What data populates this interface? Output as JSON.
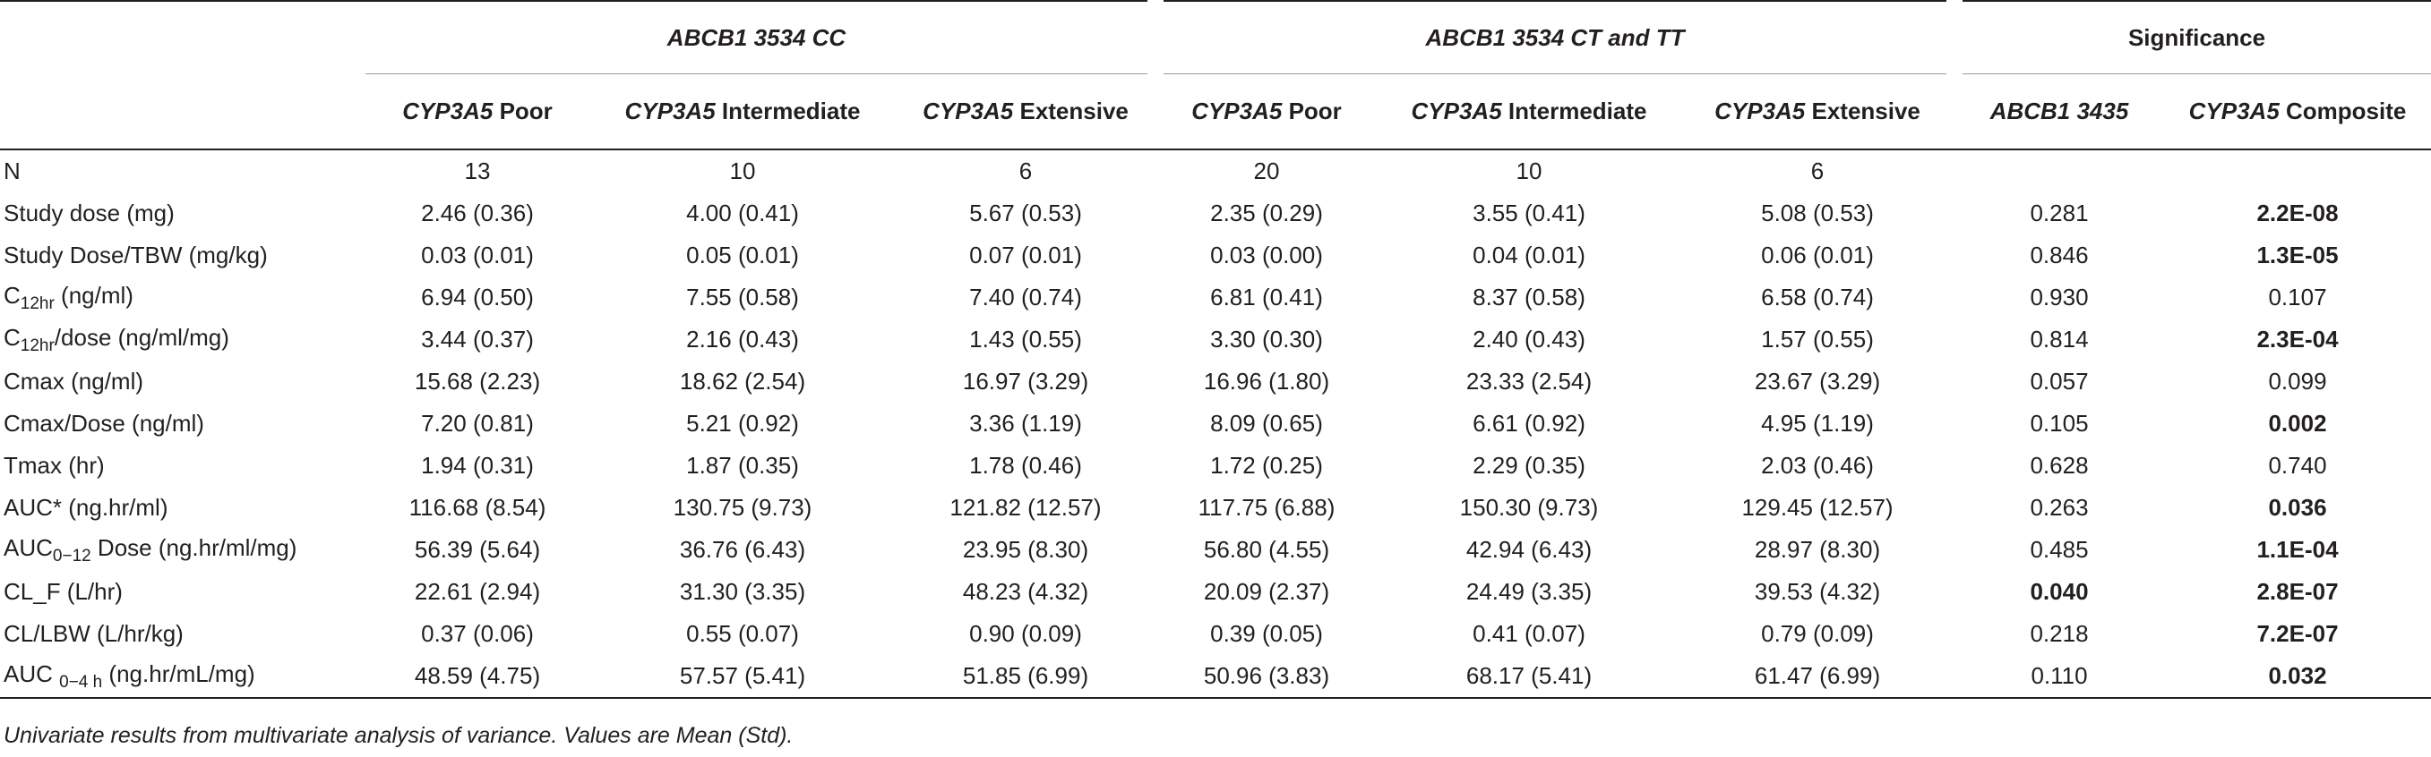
{
  "header": {
    "groups": [
      "ABCB1 3534 CC",
      "ABCB1 3534 CT and TT",
      "Significance"
    ],
    "columns": [
      {
        "prefix": "CYP3A5",
        "suffix": " Poor"
      },
      {
        "prefix": "CYP3A5",
        "suffix": " Intermediate"
      },
      {
        "prefix": "CYP3A5",
        "suffix": " Extensive"
      },
      {
        "prefix": "CYP3A5",
        "suffix": " Poor"
      },
      {
        "prefix": "CYP3A5",
        "suffix": " Intermediate"
      },
      {
        "prefix": "CYP3A5",
        "suffix": " Extensive"
      },
      {
        "prefix": "ABCB1 3435",
        "suffix": ""
      },
      {
        "prefix": "CYP3A5",
        "suffix": " Composite"
      }
    ]
  },
  "rows": [
    {
      "label": "N",
      "values": [
        "13",
        "10",
        "6",
        "20",
        "10",
        "6",
        "",
        ""
      ]
    },
    {
      "label": "Study dose (mg)",
      "values": [
        "2.46 (0.36)",
        "4.00 (0.41)",
        "5.67 (0.53)",
        "2.35 (0.29)",
        "3.55 (0.41)",
        "5.08 (0.53)",
        "0.281",
        "2.2E-08"
      ]
    },
    {
      "label": "Study Dose/TBW (mg/kg)",
      "values": [
        "0.03 (0.01)",
        "0.05 (0.01)",
        "0.07 (0.01)",
        "0.03 (0.00)",
        "0.04 (0.01)",
        "0.06 (0.01)",
        "0.846",
        "1.3E-05"
      ]
    },
    {
      "label_main": "C",
      "label_sub": "12hr",
      "label_rest": " (ng/ml)",
      "values": [
        "6.94 (0.50)",
        "7.55 (0.58)",
        "7.40 (0.74)",
        "6.81 (0.41)",
        "8.37 (0.58)",
        "6.58 (0.74)",
        "0.930",
        "0.107"
      ]
    },
    {
      "label_main": "C",
      "label_sub": "12hr",
      "label_rest": "/dose (ng/ml/mg)",
      "values": [
        "3.44 (0.37)",
        "2.16 (0.43)",
        "1.43 (0.55)",
        "3.30 (0.30)",
        "2.40 (0.43)",
        "1.57 (0.55)",
        "0.814",
        "2.3E-04"
      ]
    },
    {
      "label": "Cmax (ng/ml)",
      "values": [
        "15.68 (2.23)",
        "18.62 (2.54)",
        "16.97 (3.29)",
        "16.96 (1.80)",
        "23.33 (2.54)",
        "23.67 (3.29)",
        "0.057",
        "0.099"
      ]
    },
    {
      "label": "Cmax/Dose (ng/ml)",
      "values": [
        "7.20 (0.81)",
        "5.21 (0.92)",
        "3.36 (1.19)",
        "8.09 (0.65)",
        "6.61 (0.92)",
        "4.95 (1.19)",
        "0.105",
        "0.002"
      ]
    },
    {
      "label": "Tmax (hr)",
      "values": [
        "1.94 (0.31)",
        "1.87 (0.35)",
        "1.78 (0.46)",
        "1.72 (0.25)",
        "2.29 (0.35)",
        "2.03 (0.46)",
        "0.628",
        "0.740"
      ]
    },
    {
      "label": "AUC* (ng.hr/ml)",
      "values": [
        "116.68 (8.54)",
        "130.75 (9.73)",
        "121.82 (12.57)",
        "117.75 (6.88)",
        "150.30 (9.73)",
        "129.45 (12.57)",
        "0.263",
        "0.036"
      ]
    },
    {
      "label_main": "AUC",
      "label_sub": "0−12",
      "label_rest": " Dose (ng.hr/ml/mg)",
      "values": [
        "56.39 (5.64)",
        "36.76 (6.43)",
        "23.95 (8.30)",
        "56.80 (4.55)",
        "42.94 (6.43)",
        "28.97 (8.30)",
        "0.485",
        "1.1E-04"
      ]
    },
    {
      "label": "CL_F (L/hr)",
      "values": [
        "22.61 (2.94)",
        "31.30 (3.35)",
        "48.23 (4.32)",
        "20.09 (2.37)",
        "24.49 (3.35)",
        "39.53 (4.32)",
        "0.040",
        "2.8E-07"
      ]
    },
    {
      "label": "CL/LBW (L/hr/kg)",
      "values": [
        "0.37 (0.06)",
        "0.55 (0.07)",
        "0.90 (0.09)",
        "0.39 (0.05)",
        "0.41 (0.07)",
        "0.79 (0.09)",
        "0.218",
        "7.2E-07"
      ]
    },
    {
      "label_main": "AUC ",
      "label_sub": "0−4 h",
      "label_rest": " (ng.hr/mL/mg)",
      "values": [
        "48.59 (4.75)",
        "57.57 (5.41)",
        "51.85 (6.99)",
        "50.96 (3.83)",
        "68.17 (5.41)",
        "61.47 (6.99)",
        "0.110",
        "0.032"
      ]
    }
  ],
  "bold_cells": {
    "1": [
      7
    ],
    "2": [
      7
    ],
    "4": [
      7
    ],
    "6": [
      7
    ],
    "8": [
      7
    ],
    "9": [
      7
    ],
    "10": [
      6,
      7
    ],
    "11": [
      7
    ],
    "12": [
      7
    ]
  },
  "footnote": "Univariate results from multivariate analysis of variance. Values are Mean (Std)."
}
